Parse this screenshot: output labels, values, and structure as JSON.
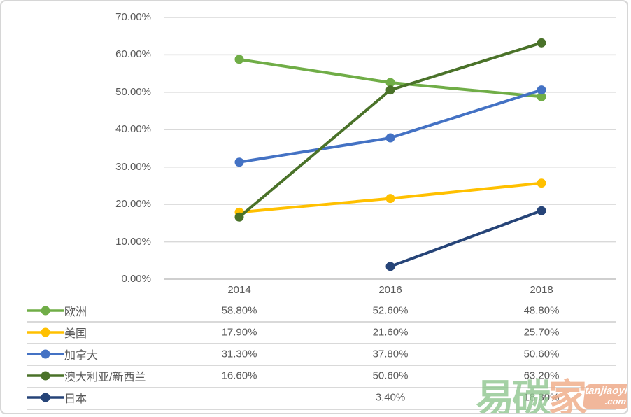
{
  "chart_data": {
    "type": "line",
    "title": "",
    "xlabel": "",
    "ylabel": "",
    "categories": [
      "2014",
      "2016",
      "2018"
    ],
    "y_tick_labels": [
      "70.00%",
      "60.00%",
      "50.00%",
      "40.00%",
      "30.00%",
      "20.00%",
      "10.00%",
      "0.00%"
    ],
    "ylim": [
      0,
      70
    ],
    "grid": true,
    "legend_position": "table-left",
    "series": [
      {
        "name": "欧洲",
        "color": "#70AD47",
        "values": [
          58.8,
          52.6,
          48.8
        ],
        "labels": [
          "58.80%",
          "52.60%",
          "48.80%"
        ]
      },
      {
        "name": "美国",
        "color": "#FFC000",
        "values": [
          17.9,
          21.6,
          25.7
        ],
        "labels": [
          "17.90%",
          "21.60%",
          "25.70%"
        ]
      },
      {
        "name": "加拿大",
        "color": "#4472C4",
        "values": [
          31.3,
          37.8,
          50.6
        ],
        "labels": [
          "31.30%",
          "37.80%",
          "50.60%"
        ]
      },
      {
        "name": "澳大利亚/新西兰",
        "color": "#4A7229",
        "values": [
          16.6,
          50.6,
          63.2
        ],
        "labels": [
          "16.60%",
          "50.60%",
          "63.20%"
        ]
      },
      {
        "name": "日本",
        "color": "#264478",
        "values": [
          null,
          3.4,
          18.3
        ],
        "labels": [
          "",
          "3.40%",
          "18.30%"
        ]
      }
    ]
  },
  "watermark": {
    "green_text": "易碳",
    "peach_text": "家",
    "badge_line1": "tanjiaoyi",
    "badge_line2": ".com",
    "green_color": "#92c792",
    "peach_color": "#f0ad88"
  }
}
